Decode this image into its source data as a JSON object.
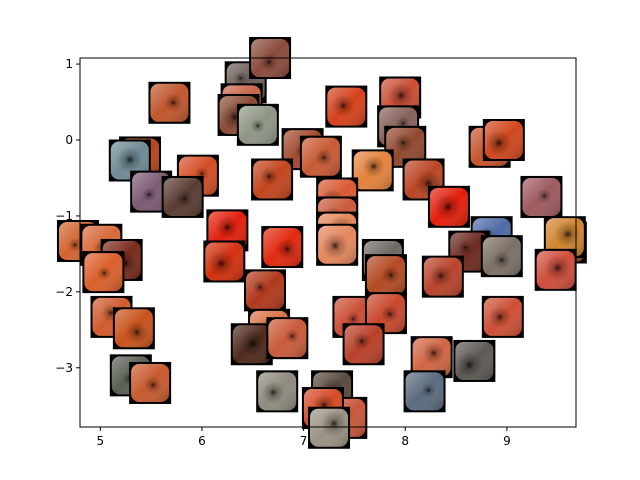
{
  "chart_data": {
    "type": "scatter",
    "title": "",
    "xlabel": "",
    "ylabel": "",
    "xlim": [
      4.8,
      9.68
    ],
    "ylim": [
      -3.78,
      1.08
    ],
    "x_ticks": [
      5,
      6,
      7,
      8,
      9
    ],
    "y_ticks": [
      1,
      0,
      -1,
      -2,
      -3
    ],
    "grid": false,
    "legend": "none",
    "marker": "endoscopy image thumbnail",
    "points": [
      {
        "x": 6.43,
        "y": 0.76,
        "tone": "#6b5d57"
      },
      {
        "x": 6.67,
        "y": 1.08,
        "tone": "#8b4a3c"
      },
      {
        "x": 6.39,
        "y": 0.47,
        "tone": "#c86548"
      },
      {
        "x": 6.36,
        "y": 0.33,
        "tone": "#8a4b36"
      },
      {
        "x": 6.55,
        "y": 0.2,
        "tone": "#8e9585"
      },
      {
        "x": 5.68,
        "y": 0.49,
        "tone": "#c0562d"
      },
      {
        "x": 7.42,
        "y": 0.44,
        "tone": "#d3421b"
      },
      {
        "x": 7.95,
        "y": 0.56,
        "tone": "#ca4e36"
      },
      {
        "x": 7.93,
        "y": 0.18,
        "tone": "#85625a"
      },
      {
        "x": 8.0,
        "y": -0.09,
        "tone": "#90492f"
      },
      {
        "x": 8.83,
        "y": -0.09,
        "tone": "#c6562d"
      },
      {
        "x": 8.97,
        "y": 0.0,
        "tone": "#d0471d"
      },
      {
        "x": 6.99,
        "y": -0.12,
        "tone": "#a14a2d"
      },
      {
        "x": 7.17,
        "y": -0.22,
        "tone": "#c85a35"
      },
      {
        "x": 5.39,
        "y": -0.23,
        "tone": "#b8451c"
      },
      {
        "x": 5.29,
        "y": -0.27,
        "tone": "#6f8a95"
      },
      {
        "x": 5.96,
        "y": -0.47,
        "tone": "#d34d26"
      },
      {
        "x": 6.69,
        "y": -0.52,
        "tone": "#c2451d"
      },
      {
        "x": 7.68,
        "y": -0.4,
        "tone": "#e4823d"
      },
      {
        "x": 8.18,
        "y": -0.52,
        "tone": "#b94624"
      },
      {
        "x": 5.5,
        "y": -0.68,
        "tone": "#7c5a73"
      },
      {
        "x": 5.81,
        "y": -0.75,
        "tone": "#5a3c31"
      },
      {
        "x": 7.33,
        "y": -0.77,
        "tone": "#d85a33"
      },
      {
        "x": 8.43,
        "y": -0.88,
        "tone": "#e41f0b"
      },
      {
        "x": 9.34,
        "y": -0.75,
        "tone": "#9d5a5e"
      },
      {
        "x": 7.33,
        "y": -1.02,
        "tone": "#c95a3b"
      },
      {
        "x": 6.25,
        "y": -1.19,
        "tone": "#e21f0c"
      },
      {
        "x": 7.33,
        "y": -1.22,
        "tone": "#e5865a"
      },
      {
        "x": 4.78,
        "y": -1.33,
        "tone": "#d2642f"
      },
      {
        "x": 5.01,
        "y": -1.38,
        "tone": "#d86a39"
      },
      {
        "x": 6.79,
        "y": -1.41,
        "tone": "#e12a0f"
      },
      {
        "x": 7.33,
        "y": -1.38,
        "tone": "#e3865d"
      },
      {
        "x": 7.78,
        "y": -1.58,
        "tone": "#6d6a62"
      },
      {
        "x": 8.85,
        "y": -1.28,
        "tone": "#4f6aa8"
      },
      {
        "x": 9.58,
        "y": -1.35,
        "tone": "#a24a3a"
      },
      {
        "x": 9.57,
        "y": -1.28,
        "tone": "#d0842f"
      },
      {
        "x": 8.63,
        "y": -1.47,
        "tone": "#6c2a22"
      },
      {
        "x": 8.95,
        "y": -1.53,
        "tone": "#7b7064"
      },
      {
        "x": 5.21,
        "y": -1.58,
        "tone": "#7a2b1b"
      },
      {
        "x": 6.22,
        "y": -1.6,
        "tone": "#d2300e"
      },
      {
        "x": 5.03,
        "y": -1.74,
        "tone": "#da5f2b"
      },
      {
        "x": 7.81,
        "y": -1.78,
        "tone": "#b34a24"
      },
      {
        "x": 8.37,
        "y": -1.8,
        "tone": "#b8432c"
      },
      {
        "x": 9.48,
        "y": -1.71,
        "tone": "#cf4d3b"
      },
      {
        "x": 6.62,
        "y": -1.98,
        "tone": "#b0391c"
      },
      {
        "x": 5.11,
        "y": -2.33,
        "tone": "#cf5b2e"
      },
      {
        "x": 5.33,
        "y": -2.48,
        "tone": "#c8521c"
      },
      {
        "x": 6.66,
        "y": -2.5,
        "tone": "#d77348"
      },
      {
        "x": 7.49,
        "y": -2.33,
        "tone": "#ca4d35"
      },
      {
        "x": 7.81,
        "y": -2.28,
        "tone": "#c9472c"
      },
      {
        "x": 8.96,
        "y": -2.33,
        "tone": "#cd4f35"
      },
      {
        "x": 6.49,
        "y": -2.69,
        "tone": "#4e2a1c"
      },
      {
        "x": 6.84,
        "y": -2.61,
        "tone": "#c85a3a"
      },
      {
        "x": 7.59,
        "y": -2.69,
        "tone": "#b8402a"
      },
      {
        "x": 8.26,
        "y": -2.86,
        "tone": "#d16544"
      },
      {
        "x": 8.68,
        "y": -2.91,
        "tone": "#5d5953"
      },
      {
        "x": 5.3,
        "y": -3.1,
        "tone": "#595f55"
      },
      {
        "x": 5.49,
        "y": -3.2,
        "tone": "#c85a2f"
      },
      {
        "x": 6.74,
        "y": -3.31,
        "tone": "#8e8a7e"
      },
      {
        "x": 7.28,
        "y": -3.31,
        "tone": "#5b4a3d"
      },
      {
        "x": 8.19,
        "y": -3.31,
        "tone": "#5a6b7d"
      },
      {
        "x": 7.42,
        "y": -3.66,
        "tone": "#c8573a"
      },
      {
        "x": 7.19,
        "y": -3.53,
        "tone": "#d44a27"
      },
      {
        "x": 7.25,
        "y": -3.79,
        "tone": "#9b9384"
      }
    ]
  }
}
